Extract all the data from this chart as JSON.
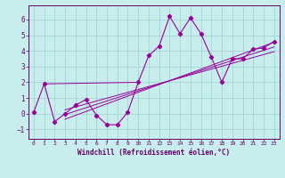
{
  "xlabel": "Windchill (Refroidissement éolien,°C)",
  "bg_color": "#c8eded",
  "grid_color": "#a8d8d8",
  "line_color": "#990099",
  "spine_color": "#660066",
  "xlim": [
    -0.5,
    23.5
  ],
  "ylim": [
    -1.6,
    6.9
  ],
  "xticks": [
    0,
    1,
    2,
    3,
    4,
    5,
    6,
    7,
    8,
    9,
    10,
    11,
    12,
    13,
    14,
    15,
    16,
    17,
    18,
    19,
    20,
    21,
    22,
    23
  ],
  "yticks": [
    -1,
    0,
    1,
    2,
    3,
    4,
    5,
    6
  ],
  "scatter_x": [
    0,
    1,
    2,
    3,
    4,
    5,
    6,
    7,
    8,
    9,
    10,
    11,
    12,
    13,
    14,
    15,
    16,
    17,
    18,
    19,
    20,
    21,
    22,
    23
  ],
  "scatter_y": [
    0.1,
    1.9,
    -0.5,
    0.0,
    0.55,
    0.9,
    -0.1,
    -0.7,
    -0.7,
    0.1,
    2.0,
    3.7,
    4.3,
    6.2,
    5.1,
    6.1,
    5.1,
    3.6,
    2.0,
    3.5,
    3.5,
    4.1,
    4.2,
    4.6
  ],
  "flat_line_x": [
    1,
    10
  ],
  "flat_line_y": [
    1.9,
    2.0
  ],
  "reg_lines": [
    {
      "x": [
        3,
        23
      ],
      "y": [
        -0.35,
        4.55
      ]
    },
    {
      "x": [
        3,
        23
      ],
      "y": [
        -0.05,
        4.25
      ]
    },
    {
      "x": [
        3,
        23
      ],
      "y": [
        0.25,
        3.95
      ]
    }
  ]
}
